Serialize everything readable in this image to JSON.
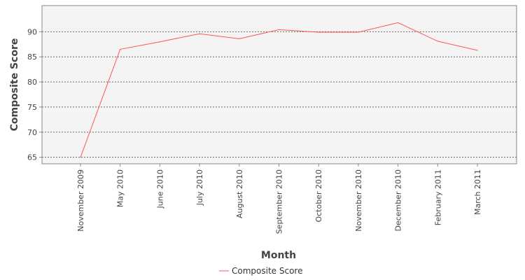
{
  "chart_data": {
    "type": "line",
    "title": "",
    "xlabel": "Month",
    "ylabel": "Composite Score",
    "categories": [
      "November 2009",
      "May 2010",
      "June 2010",
      "July 2010",
      "August 2010",
      "September 2010",
      "October 2010",
      "November 2010",
      "December 2010",
      "February 2011",
      "March 2011"
    ],
    "series": [
      {
        "name": "Composite Score",
        "color": "#ff5555",
        "values": [
          65.0,
          86.5,
          88.0,
          89.6,
          88.6,
          90.4,
          89.9,
          89.9,
          91.8,
          88.1,
          86.3
        ]
      }
    ],
    "ylim": [
      63.7,
      95.2
    ],
    "yticks": [
      65,
      70,
      75,
      80,
      85,
      90
    ],
    "grid": true,
    "gridlines": "horizontal, dashed",
    "legend_position": "bottom-center",
    "plot_background": "#f4f4f4"
  }
}
